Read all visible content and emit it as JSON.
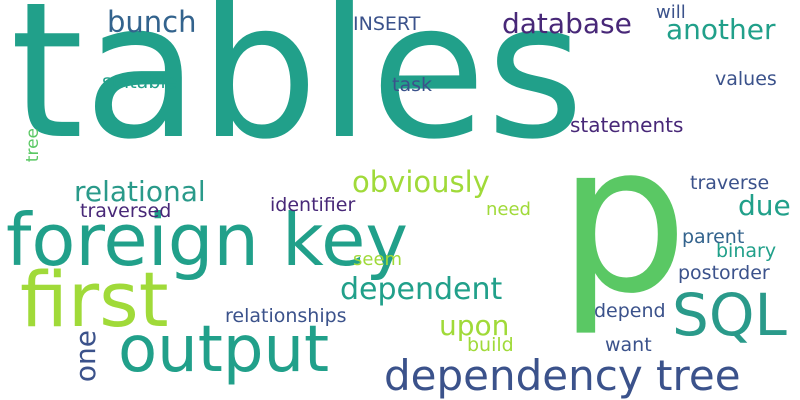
{
  "palette": {
    "background": "#ffffff",
    "teal": "#21a08a",
    "green": "#5ac864",
    "lime": "#a0da39",
    "blue": "#33638d",
    "navy": "#3b528b",
    "purple": "#482878",
    "aqua": "#2a9a8a"
  },
  "words": {
    "tables": "tables",
    "p": "p",
    "foreign_key": "foreign key",
    "first": "first",
    "output": "output",
    "sql": "SQL",
    "dependency_tree": "dependency tree",
    "database": "database",
    "another": "another",
    "bunch": "bunch",
    "insert": "INSERT",
    "will": "will",
    "suitable": "suitable",
    "task": "task",
    "values": "values",
    "statements": "statements",
    "tree": "tree",
    "relational": "relational",
    "obviously": "obviously",
    "traversed": "traversed",
    "identifier": "identifier",
    "need": "need",
    "due": "due",
    "traverse": "traverse",
    "parent": "parent",
    "binary": "binary",
    "dependent": "dependent",
    "seem": "seem",
    "postorder": "postorder",
    "relationships": "relationships",
    "upon": "upon",
    "depend": "depend",
    "one": "one",
    "build": "build",
    "want": "want"
  }
}
